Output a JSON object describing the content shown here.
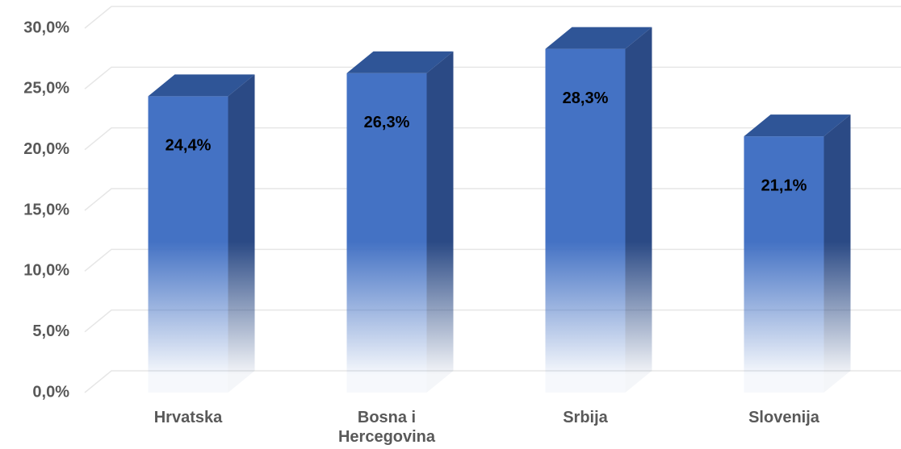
{
  "chart_data": {
    "type": "bar3d",
    "categories": [
      "Hrvatska",
      "Bosna i Hercegovina",
      "Srbija",
      "Slovenija"
    ],
    "values": [
      24.4,
      26.3,
      28.3,
      21.1
    ],
    "value_labels": [
      "24,4%",
      "26,3%",
      "28,3%",
      "21,1%"
    ],
    "color": "#4472c4",
    "ylim": [
      0,
      30
    ],
    "yticks": [
      {
        "value": 0,
        "label": "0,0%"
      },
      {
        "value": 5,
        "label": "5,0%"
      },
      {
        "value": 10,
        "label": "10,0%"
      },
      {
        "value": 15,
        "label": "15,0%"
      },
      {
        "value": 20,
        "label": "20,0%"
      },
      {
        "value": 25,
        "label": "25,0%"
      },
      {
        "value": 30,
        "label": "30,0%"
      }
    ],
    "grid": true
  }
}
